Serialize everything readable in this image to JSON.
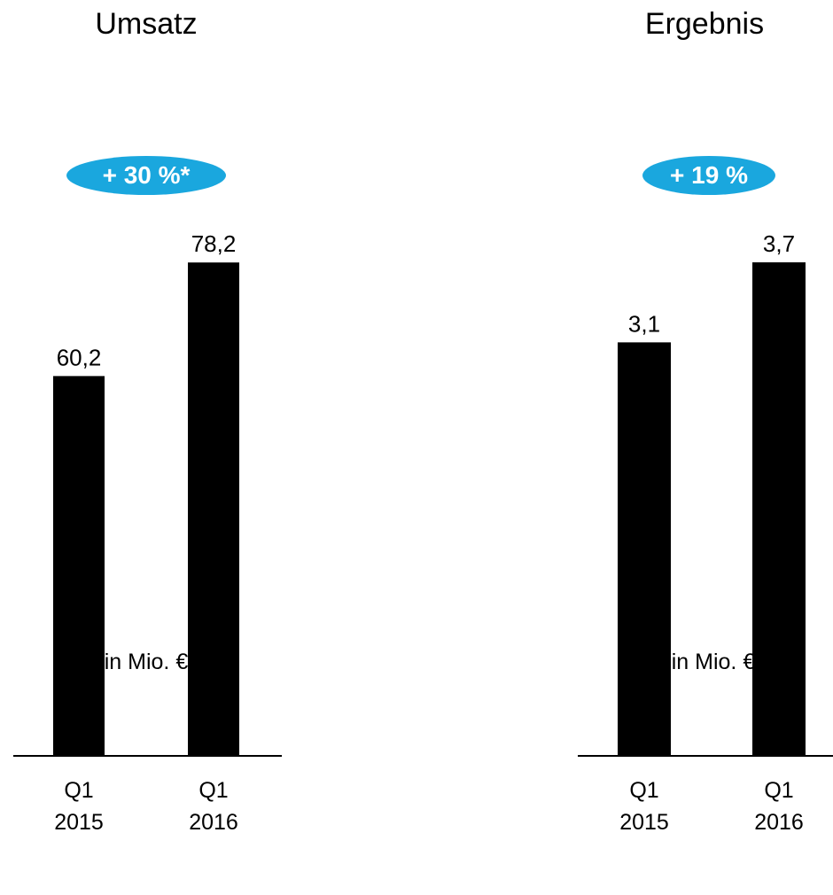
{
  "chart_data": [
    {
      "type": "bar",
      "title": "Umsatz",
      "badge": "+ 30 %*",
      "categories": [
        "Q1\n2015",
        "Q1\n2016"
      ],
      "category_lines": [
        [
          "Q1",
          "2015"
        ],
        [
          "Q1",
          "2016"
        ]
      ],
      "values": [
        60.2,
        78.2
      ],
      "value_labels": [
        "60,2",
        "78,2"
      ],
      "ylim": [
        0,
        100
      ],
      "unit": "in Mio. €",
      "badge_color": "#1aa7de",
      "bar_color": "#000000",
      "grid": false
    },
    {
      "type": "bar",
      "title": "Ergebnis",
      "badge": "+ 19 %",
      "categories": [
        "Q1\n2015",
        "Q1\n2016"
      ],
      "category_lines": [
        [
          "Q1",
          "2015"
        ],
        [
          "Q1",
          "2016"
        ]
      ],
      "values": [
        3.1,
        3.7
      ],
      "value_labels": [
        "3,1",
        "3,7"
      ],
      "ylim": [
        0,
        4.73
      ],
      "unit": "in Mio. €",
      "badge_color": "#1aa7de",
      "bar_color": "#000000",
      "grid": false
    }
  ]
}
